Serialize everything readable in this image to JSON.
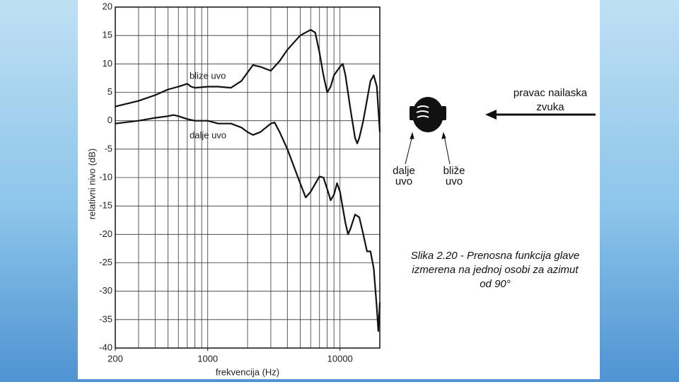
{
  "chart_data": {
    "type": "line",
    "xlabel": "frekvencija (Hz)",
    "ylabel": "relativni nivo (dB)",
    "xscale": "log",
    "xlim": [
      200,
      20000
    ],
    "xticks": [
      200,
      1000,
      10000
    ],
    "xgrid": [
      200,
      300,
      400,
      500,
      600,
      700,
      800,
      900,
      1000,
      2000,
      3000,
      4000,
      5000,
      6000,
      7000,
      8000,
      9000,
      10000,
      20000
    ],
    "ylim": [
      -40,
      20
    ],
    "yticks": [
      -40,
      -35,
      -30,
      -25,
      -20,
      -15,
      -10,
      -5,
      0,
      5,
      10,
      15,
      20
    ],
    "grid": true,
    "series": [
      {
        "name": "blize uvo",
        "color": "#111111",
        "x": [
          200,
          300,
          400,
          500,
          600,
          700,
          750,
          800,
          1000,
          1200,
          1500,
          1800,
          2000,
          2200,
          2500,
          3000,
          3500,
          4000,
          5000,
          6000,
          6500,
          7000,
          7500,
          8000,
          8500,
          9000,
          10000,
          10500,
          11000,
          12000,
          13000,
          13500,
          14000,
          15000,
          17000,
          18000,
          19000,
          20000
        ],
        "values": [
          2.5,
          3.5,
          4.5,
          5.5,
          6,
          6.5,
          6,
          5.8,
          6,
          6,
          5.8,
          7,
          8.5,
          9.8,
          9.5,
          8.8,
          10.5,
          12.5,
          15,
          16,
          15.5,
          12,
          8,
          5,
          6,
          8,
          9.5,
          10,
          8,
          2,
          -3,
          -4,
          -3,
          0,
          7,
          8,
          6,
          -2
        ]
      },
      {
        "name": "dalje uvo",
        "color": "#111111",
        "x": [
          200,
          300,
          400,
          500,
          550,
          600,
          700,
          800,
          1000,
          1200,
          1500,
          1800,
          2000,
          2200,
          2500,
          3000,
          3200,
          3500,
          4000,
          5000,
          5500,
          6000,
          7000,
          7500,
          8000,
          8500,
          9000,
          9500,
          10000,
          11000,
          11500,
          12000,
          13000,
          14000,
          15000,
          16000,
          17000,
          18000,
          19000,
          19500,
          20000
        ],
        "values": [
          -0.5,
          0,
          0.5,
          0.8,
          1,
          0.8,
          0.3,
          0,
          0,
          -0.5,
          -0.5,
          -1.2,
          -2,
          -2.5,
          -2,
          -0.5,
          -0.3,
          -2,
          -5,
          -11,
          -13.5,
          -12.5,
          -9.8,
          -10,
          -12,
          -14,
          -13,
          -11,
          -12.5,
          -18,
          -20,
          -19,
          -16.5,
          -17,
          -20,
          -23,
          -23,
          -26,
          -33,
          -37,
          -32
        ]
      }
    ],
    "direction_label": [
      "pravac nailaska",
      "zvuka"
    ],
    "far_ear_label": [
      "dalje",
      "uvo"
    ],
    "near_ear_label": [
      "bliže",
      "uvo"
    ],
    "caption": [
      "Slika 2.20 - Prenosna funkcija glave",
      "izmerena na jednoj osobi za azimut",
      "od 90°"
    ]
  }
}
